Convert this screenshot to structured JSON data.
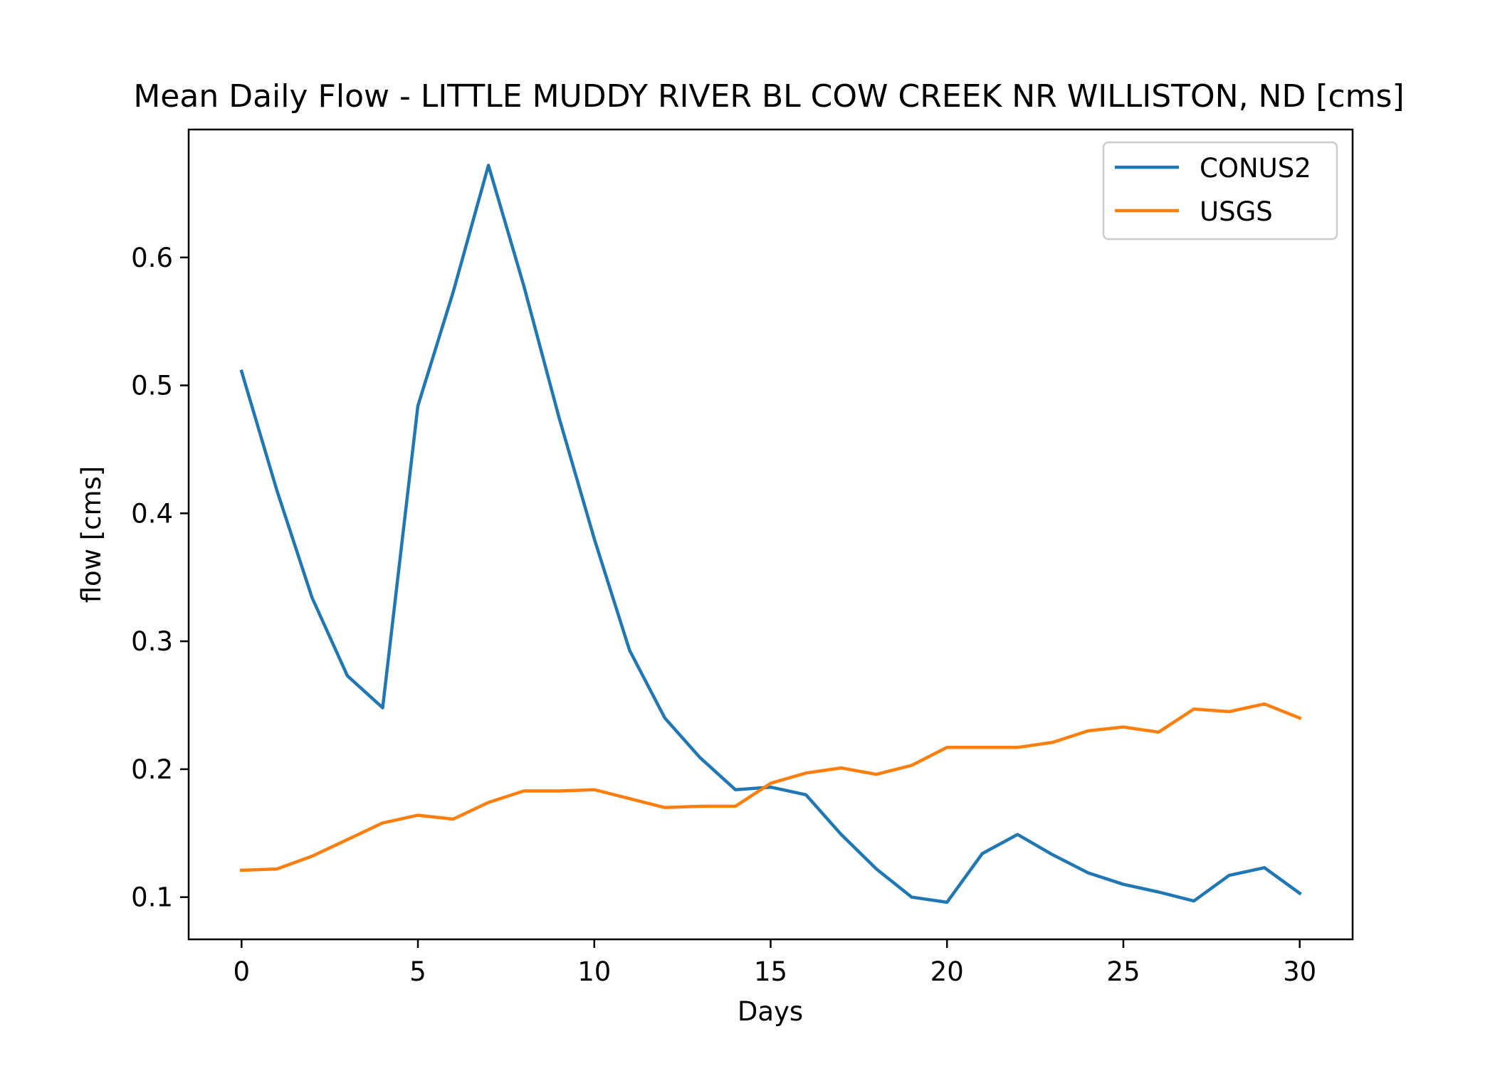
{
  "chart_data": {
    "type": "line",
    "title": "Mean Daily Flow - LITTLE MUDDY RIVER BL COW CREEK NR WILLISTON, ND [cms]",
    "xlabel": "Days",
    "ylabel": "flow [cms]",
    "xlim": [
      -1.5,
      31.5
    ],
    "ylim": [
      0.067,
      0.7
    ],
    "xticks": [
      0,
      5,
      10,
      15,
      20,
      25,
      30
    ],
    "xtick_labels": [
      "0",
      "5",
      "10",
      "15",
      "20",
      "25",
      "30"
    ],
    "yticks": [
      0.1,
      0.2,
      0.3,
      0.4,
      0.5,
      0.6
    ],
    "ytick_labels": [
      "0.1",
      "0.2",
      "0.3",
      "0.4",
      "0.5",
      "0.6"
    ],
    "grid": false,
    "legend_position": "top-right",
    "x": [
      0,
      1,
      2,
      3,
      4,
      5,
      6,
      7,
      8,
      9,
      10,
      11,
      12,
      13,
      14,
      15,
      16,
      17,
      18,
      19,
      20,
      21,
      22,
      23,
      24,
      25,
      26,
      27,
      28,
      29,
      30
    ],
    "series": [
      {
        "name": "CONUS2",
        "color": "#1f77b4",
        "values": [
          0.511,
          0.418,
          0.334,
          0.273,
          0.248,
          0.484,
          0.573,
          0.672,
          0.578,
          0.475,
          0.38,
          0.293,
          0.24,
          0.209,
          0.184,
          0.186,
          0.18,
          0.149,
          0.122,
          0.1,
          0.096,
          0.134,
          0.149,
          0.133,
          0.119,
          0.11,
          0.104,
          0.097,
          0.117,
          0.123,
          0.103
        ]
      },
      {
        "name": "USGS",
        "color": "#ff7f0e",
        "values": [
          0.121,
          0.122,
          0.132,
          0.145,
          0.158,
          0.164,
          0.161,
          0.174,
          0.183,
          0.183,
          0.184,
          0.177,
          0.17,
          0.171,
          0.171,
          0.189,
          0.197,
          0.201,
          0.196,
          0.203,
          0.217,
          0.217,
          0.217,
          0.221,
          0.23,
          0.233,
          0.229,
          0.247,
          0.245,
          0.251,
          0.24
        ]
      }
    ]
  }
}
